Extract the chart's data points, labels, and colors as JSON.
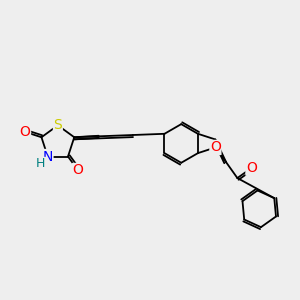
{
  "bg_color": "#eeeeee",
  "bond_color": "#000000",
  "atom_colors": {
    "S": "#cccc00",
    "N": "#0000ff",
    "O": "#ff0000",
    "H": "#008080",
    "C": "#000000"
  },
  "font_size": 9,
  "line_width": 1.3,
  "figsize": [
    3.0,
    3.0
  ],
  "dpi": 100
}
